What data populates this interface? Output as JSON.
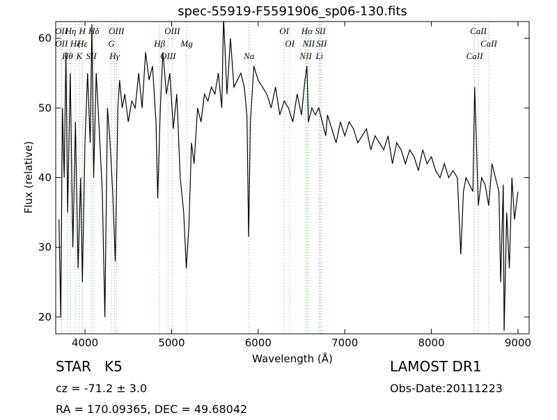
{
  "chart_data": {
    "type": "line",
    "title": "spec-55919-F5591906_sp06-130.fits",
    "xlabel": "Wavelength (Å)",
    "ylabel": "Flux (relative)",
    "xlim": [
      3662,
      9129
    ],
    "ylim": [
      17.6,
      62.4
    ],
    "xticks": [
      4000,
      5000,
      6000,
      7000,
      8000,
      9000
    ],
    "yticks": [
      20,
      30,
      40,
      50,
      60
    ],
    "x": [
      3700,
      3720,
      3740,
      3760,
      3780,
      3800,
      3830,
      3860,
      3890,
      3920,
      3950,
      3970,
      4000,
      4030,
      4060,
      4080,
      4100,
      4130,
      4160,
      4200,
      4230,
      4260,
      4290,
      4320,
      4350,
      4380,
      4400,
      4430,
      4460,
      4500,
      4540,
      4580,
      4620,
      4660,
      4700,
      4740,
      4780,
      4820,
      4840,
      4870,
      4900,
      4940,
      4980,
      5020,
      5060,
      5100,
      5140,
      5170,
      5200,
      5230,
      5260,
      5300,
      5340,
      5380,
      5420,
      5460,
      5500,
      5540,
      5580,
      5600,
      5640,
      5680,
      5720,
      5760,
      5800,
      5840,
      5870,
      5890,
      5910,
      5950,
      6000,
      6050,
      6100,
      6150,
      6200,
      6250,
      6300,
      6350,
      6400,
      6450,
      6500,
      6540,
      6563,
      6580,
      6620,
      6660,
      6700,
      6740,
      6780,
      6800,
      6850,
      6900,
      6950,
      7000,
      7050,
      7100,
      7150,
      7200,
      7250,
      7300,
      7350,
      7400,
      7450,
      7500,
      7550,
      7600,
      7650,
      7700,
      7750,
      7800,
      7850,
      7900,
      7950,
      8000,
      8050,
      8100,
      8150,
      8200,
      8250,
      8300,
      8340,
      8370,
      8400,
      8440,
      8480,
      8500,
      8520,
      8542,
      8580,
      8620,
      8662,
      8700,
      8740,
      8780,
      8800,
      8830,
      8840,
      8870,
      8900,
      8930,
      8960,
      9000
    ],
    "series": [
      {
        "color": "#000000",
        "values": [
          34,
          20,
          50,
          40,
          58,
          35,
          55,
          30,
          48,
          27,
          40,
          25,
          45,
          55,
          45,
          62,
          40,
          55,
          48,
          38,
          20,
          50,
          45,
          38,
          28,
          50,
          54,
          50,
          52,
          48,
          51,
          50,
          55,
          50,
          58,
          54,
          56,
          48,
          37,
          50,
          58,
          52,
          55,
          47,
          52,
          40,
          35,
          27,
          33,
          45,
          42,
          50,
          48,
          52,
          51,
          53,
          52,
          55,
          50,
          63,
          52,
          60,
          53,
          54,
          55,
          53,
          49,
          31.5,
          48,
          56,
          54,
          53,
          52,
          50,
          53,
          49,
          51,
          50,
          48,
          52,
          49,
          54,
          56,
          48,
          50,
          49,
          50,
          48,
          46,
          49,
          47,
          45,
          48,
          46,
          48,
          47,
          45,
          46,
          47,
          44,
          46,
          45,
          44,
          46,
          42,
          45,
          44,
          42,
          44,
          43,
          41,
          44,
          42,
          43,
          41,
          40,
          42,
          40,
          41,
          40,
          29,
          38,
          40,
          39,
          38,
          53,
          45,
          36,
          40,
          39,
          36,
          42,
          40,
          38,
          25,
          39,
          18,
          35,
          27,
          40,
          34,
          38
        ]
      }
    ],
    "line_color": "#5cb85c",
    "lines": [
      {
        "wavelength": 3727,
        "label": "OII"
      },
      {
        "wavelength": 3729,
        "label": "OII"
      },
      {
        "wavelength": 3798,
        "label": "Hθ"
      },
      {
        "wavelength": 3835,
        "label": "Hη"
      },
      {
        "wavelength": 3889,
        "label": "Hζ"
      },
      {
        "wavelength": 3934,
        "label": "K"
      },
      {
        "wavelength": 3969,
        "label": "H"
      },
      {
        "wavelength": 3970,
        "label": "Hε"
      },
      {
        "wavelength": 4072,
        "label": "SII"
      },
      {
        "wavelength": 4102,
        "label": "Hδ"
      },
      {
        "wavelength": 4305,
        "label": "G"
      },
      {
        "wavelength": 4341,
        "label": "Hγ"
      },
      {
        "wavelength": 4363,
        "label": "OIII"
      },
      {
        "wavelength": 4861,
        "label": "Hβ"
      },
      {
        "wavelength": 4959,
        "label": "OIII"
      },
      {
        "wavelength": 5007,
        "label": "OIII"
      },
      {
        "wavelength": 5175,
        "label": "Mg"
      },
      {
        "wavelength": 5894,
        "label": "Na"
      },
      {
        "wavelength": 6300,
        "label": "OI"
      },
      {
        "wavelength": 6364,
        "label": "OI"
      },
      {
        "wavelength": 6548,
        "label": "NII"
      },
      {
        "wavelength": 6563,
        "label": "Hα"
      },
      {
        "wavelength": 6583,
        "label": "NII"
      },
      {
        "wavelength": 6707,
        "label": "Li"
      },
      {
        "wavelength": 6717,
        "label": "SII"
      },
      {
        "wavelength": 6731,
        "label": "SII"
      },
      {
        "wavelength": 8498,
        "label": "CaII"
      },
      {
        "wavelength": 8542,
        "label": "CaII"
      },
      {
        "wavelength": 8662,
        "label": "CaII"
      }
    ]
  },
  "footer": {
    "object": "STAR   K5",
    "survey": "LAMOST DR1",
    "cz": "cz = -71.2 ± 3.0",
    "date": "Obs-Date:20111223",
    "coords": "RA = 170.09365, DEC = 49.68042"
  }
}
